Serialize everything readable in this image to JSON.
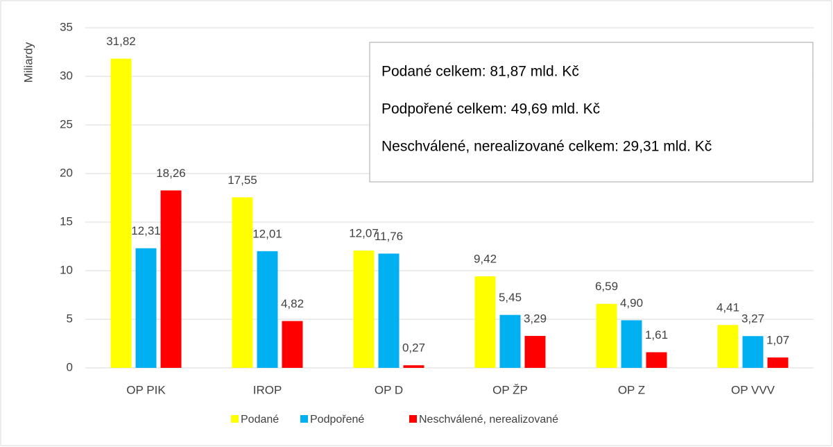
{
  "chart_data": {
    "type": "bar",
    "y_label": "Miliardy",
    "categories": [
      "OP PIK",
      "IROP",
      "OP D",
      "OP ŽP",
      "OP Z",
      "OP VVV"
    ],
    "series": [
      {
        "name": "Podané",
        "color": "#ffff00",
        "values": [
          31.82,
          17.55,
          12.07,
          9.42,
          6.59,
          4.41
        ],
        "value_labels": [
          "31,82",
          "17,55",
          "12,07",
          "9,42",
          "6,59",
          "4,41"
        ]
      },
      {
        "name": "Podpořené",
        "color": "#00b0f0",
        "values": [
          12.31,
          12.01,
          11.76,
          5.45,
          4.9,
          3.27
        ],
        "value_labels": [
          "12,31",
          "12,01",
          "11,76",
          "5,45",
          "4,90",
          "3,27"
        ]
      },
      {
        "name": "Neschválené, nerealizované",
        "color": "#ff0000",
        "values": [
          18.26,
          4.82,
          0.27,
          3.29,
          1.61,
          1.07
        ],
        "value_labels": [
          "18,26",
          "4,82",
          "0,27",
          "3,29",
          "1,61",
          "1,07"
        ]
      }
    ],
    "ylim": [
      0,
      35
    ],
    "yticks": [
      0,
      5,
      10,
      15,
      20,
      25,
      30,
      35
    ],
    "grid": true,
    "legend": "bottom",
    "annotations": [
      "Podané celkem: 81,87 mld. Kč",
      "Podpořené celkem: 49,69 mld. Kč",
      "Neschválené, nerealizované celkem: 29,31 mld. Kč"
    ]
  }
}
